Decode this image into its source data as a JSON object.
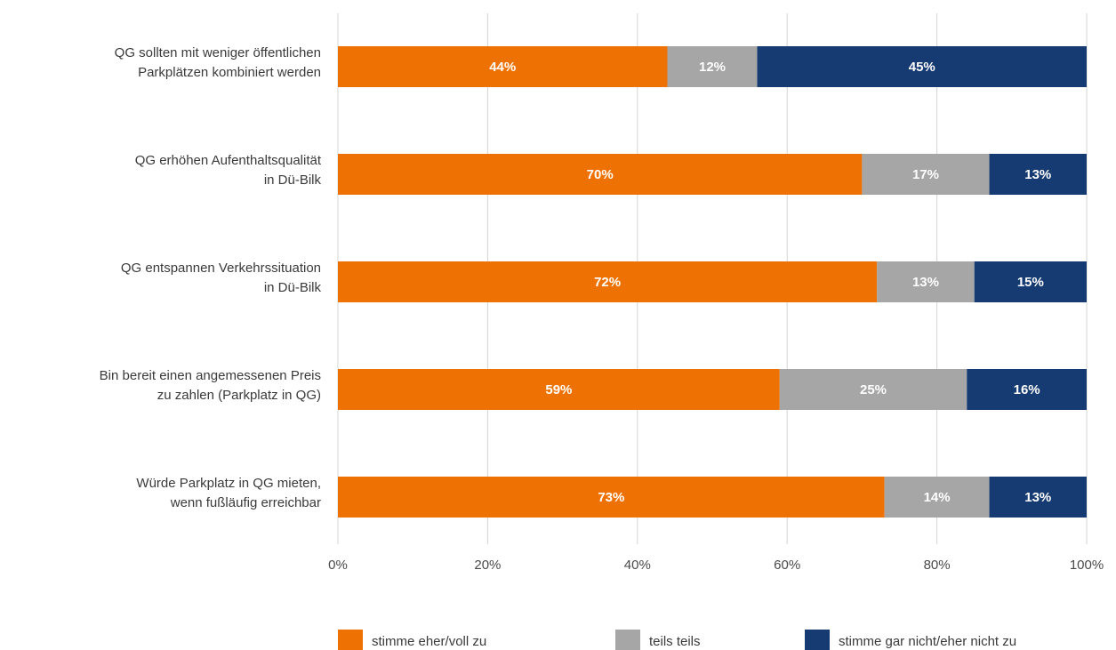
{
  "chart_data": {
    "type": "bar",
    "orientation": "horizontal",
    "stacked": true,
    "categories": [
      [
        "QG sollten mit weniger öffentlichen",
        "Parkplätzen kombiniert werden"
      ],
      [
        "QG erhöhen Aufenthaltsqualität",
        "in Dü-Bilk"
      ],
      [
        "QG entspannen Verkehrssituation",
        "in Dü-Bilk"
      ],
      [
        "Bin bereit einen angemessenen Preis",
        "zu zahlen (Parkplatz in QG)"
      ],
      [
        "Würde Parkplatz in QG mieten,",
        "wenn fußläufig erreichbar"
      ]
    ],
    "series": [
      {
        "name": "stimme eher/voll zu",
        "color": "#ee7203",
        "values": [
          44,
          70,
          72,
          59,
          73
        ]
      },
      {
        "name": "teils teils",
        "color": "#a6a6a6",
        "values": [
          12,
          17,
          13,
          25,
          14
        ]
      },
      {
        "name": "stimme gar nicht/eher nicht zu",
        "color": "#163a72",
        "values": [
          45,
          13,
          15,
          16,
          13
        ]
      }
    ],
    "x_ticks": [
      "0%",
      "20%",
      "40%",
      "60%",
      "80%",
      "100%"
    ],
    "xlim": [
      0,
      100
    ],
    "grid": true,
    "legend_position": "bottom"
  }
}
